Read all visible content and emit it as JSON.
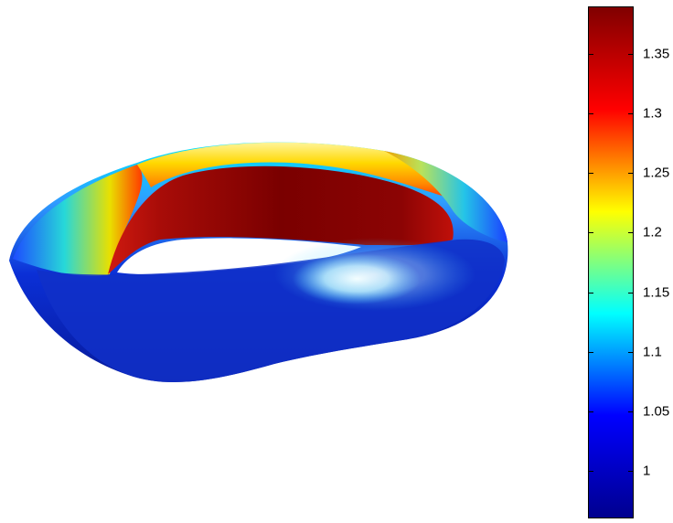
{
  "figure": {
    "type": "3d-surface",
    "colormap": "jet",
    "colormap_stops": [
      "#00008f",
      "#0000ff",
      "#00ffff",
      "#ffff00",
      "#ff0000",
      "#800000"
    ]
  },
  "colorbar": {
    "orientation": "vertical",
    "min": 0.96,
    "max": 1.39,
    "ticks": [
      {
        "value": 1.35,
        "label": "1.35"
      },
      {
        "value": 1.3,
        "label": "1.3"
      },
      {
        "value": 1.25,
        "label": "1.25"
      },
      {
        "value": 1.2,
        "label": "1.2"
      },
      {
        "value": 1.15,
        "label": "1.15"
      },
      {
        "value": 1.1,
        "label": "1.1"
      },
      {
        "value": 1.05,
        "label": "1.05"
      },
      {
        "value": 1.0,
        "label": "1"
      }
    ]
  }
}
